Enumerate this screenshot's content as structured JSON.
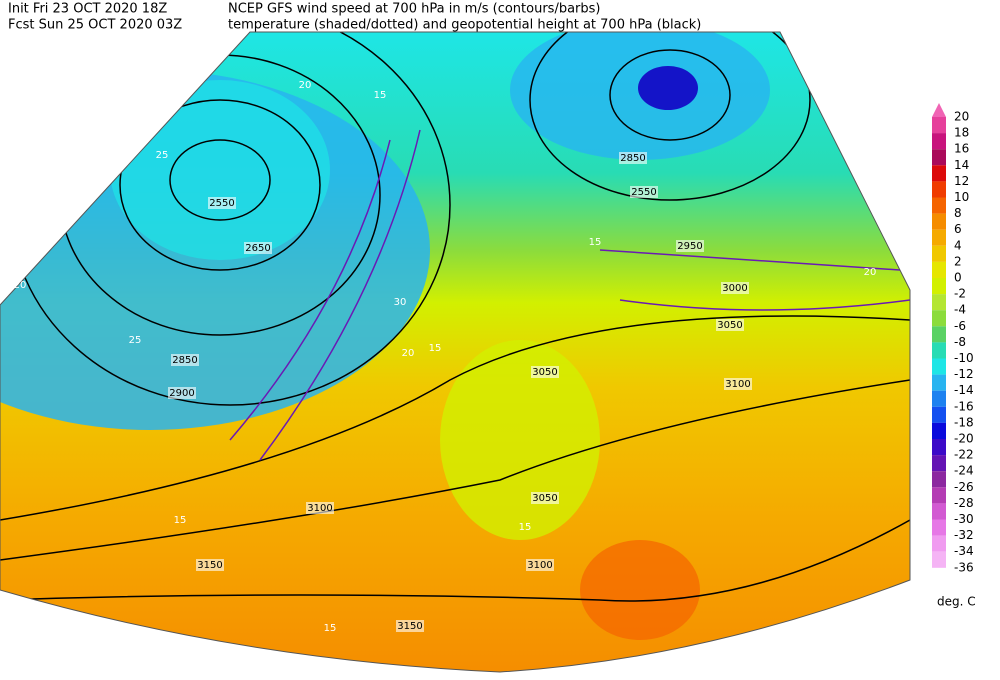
{
  "header": {
    "init": "Init  Fri 23 OCT 2020 18Z",
    "fcst": "Fcst Sun 25 OCT 2020 03Z",
    "title_line1": "NCEP GFS wind speed at 700 hPa in m/s (contours/barbs)",
    "title_line2": "temperature (shaded/dotted) and geopotential height at 700 hPa (black)"
  },
  "colorbar": {
    "ticks": [
      20,
      18,
      16,
      14,
      12,
      10,
      8,
      6,
      4,
      2,
      0,
      -2,
      -4,
      -6,
      -8,
      -10,
      -12,
      -14,
      -16,
      -18,
      -20,
      -22,
      -24,
      -26,
      -28,
      -30,
      -32,
      -34,
      -36
    ],
    "top_color": "#f064b4",
    "colors": [
      "#e6409b",
      "#c8147d",
      "#aa0a5a",
      "#dc0a0a",
      "#f03c00",
      "#f56400",
      "#f58c00",
      "#f5aa00",
      "#f0c800",
      "#e6e600",
      "#d2f000",
      "#b4e632",
      "#8cdc3c",
      "#5ad264",
      "#28dcb4",
      "#1ee6e6",
      "#28b4f0",
      "#1e82f0",
      "#1450f0",
      "#0a0adc",
      "#3c0ac8",
      "#6414b4",
      "#8c28a0",
      "#b43cb4",
      "#d25ad2",
      "#e678e6",
      "#f09bf0",
      "#f5b4f5"
    ],
    "unit": "deg. C"
  },
  "height_labels": [
    2550,
    2650,
    2850,
    2900,
    2850,
    2550,
    2950,
    3000,
    3050,
    3050,
    3100,
    3100,
    3150,
    3150,
    3100,
    3050
  ],
  "wind_labels": [
    15,
    20,
    25,
    30,
    20,
    15,
    20,
    25,
    15,
    15,
    20,
    15,
    15
  ]
}
